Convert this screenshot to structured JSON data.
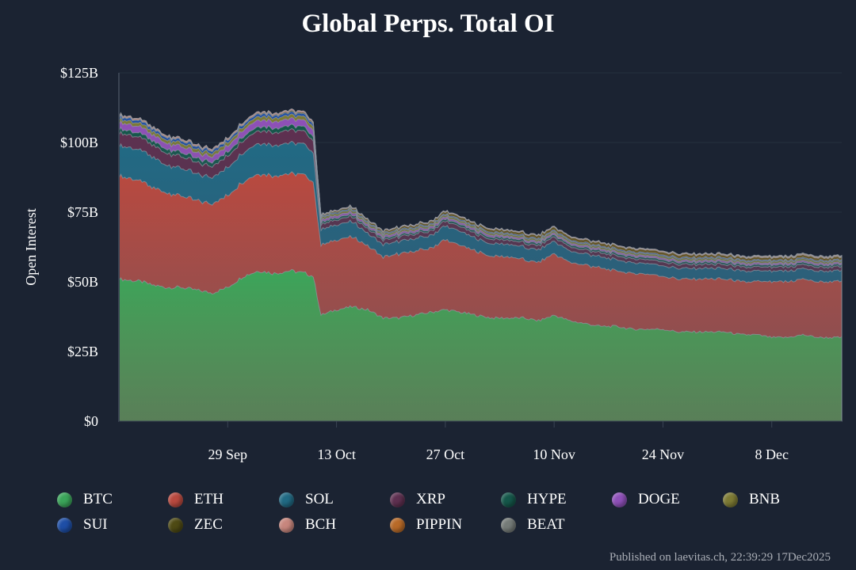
{
  "chart_data": {
    "type": "area",
    "title": "Global Perps. Total OI",
    "ylabel": "Open Interest",
    "xlabel": "",
    "ylim": [
      0,
      125
    ],
    "y_unit": "$B",
    "y_ticks": [
      {
        "value": 0,
        "label": "$0"
      },
      {
        "value": 25,
        "label": "$25B"
      },
      {
        "value": 50,
        "label": "$50B"
      },
      {
        "value": 75,
        "label": "$75B"
      },
      {
        "value": 100,
        "label": "$100B"
      },
      {
        "value": 125,
        "label": "$125B"
      }
    ],
    "x_range": [
      "2025-09-15",
      "2025-12-17"
    ],
    "x_ticks": [
      {
        "date": "2025-09-29",
        "label": "29 Sep"
      },
      {
        "date": "2025-10-13",
        "label": "13 Oct"
      },
      {
        "date": "2025-10-27",
        "label": "27 Oct"
      },
      {
        "date": "2025-11-10",
        "label": "10 Nov"
      },
      {
        "date": "2025-11-24",
        "label": "24 Nov"
      },
      {
        "date": "2025-12-08",
        "label": "8 Dec"
      }
    ],
    "stacking": "cumulative",
    "grid": true,
    "legend_position": "bottom",
    "dates": [
      "2025-09-15",
      "2025-09-18",
      "2025-09-19",
      "2025-09-21",
      "2025-09-23",
      "2025-09-25",
      "2025-09-27",
      "2025-09-29",
      "2025-10-01",
      "2025-10-03",
      "2025-10-05",
      "2025-10-07",
      "2025-10-09",
      "2025-10-10",
      "2025-10-11",
      "2025-10-13",
      "2025-10-15",
      "2025-10-17",
      "2025-10-19",
      "2025-10-21",
      "2025-10-23",
      "2025-10-25",
      "2025-10-27",
      "2025-10-29",
      "2025-10-31",
      "2025-11-02",
      "2025-11-04",
      "2025-11-06",
      "2025-11-08",
      "2025-11-10",
      "2025-11-12",
      "2025-11-14",
      "2025-11-16",
      "2025-11-18",
      "2025-11-20",
      "2025-11-22",
      "2025-11-24",
      "2025-11-26",
      "2025-11-28",
      "2025-11-30",
      "2025-12-02",
      "2025-12-04",
      "2025-12-06",
      "2025-12-08",
      "2025-12-10",
      "2025-12-12",
      "2025-12-14",
      "2025-12-17"
    ],
    "series": [
      {
        "name": "BTC",
        "color": "#3ba55a",
        "values": [
          51,
          50,
          49,
          48,
          48,
          47,
          46,
          48,
          52,
          54,
          53,
          54,
          53,
          52,
          38,
          40,
          41,
          40,
          37,
          37,
          38,
          39,
          40,
          39,
          38,
          37,
          37,
          37,
          36,
          38,
          36,
          35,
          34,
          34,
          33,
          33,
          33,
          32,
          32,
          32,
          32,
          31,
          31,
          30,
          30,
          31,
          30,
          30
        ]
      },
      {
        "name": "ETH",
        "color": "#b9493f",
        "values": [
          37,
          36,
          35,
          34,
          33,
          32,
          32,
          33,
          34,
          35,
          35,
          35,
          35,
          34,
          25,
          25,
          25,
          23,
          22,
          23,
          23,
          23,
          25,
          24,
          23,
          22,
          22,
          21,
          21,
          22,
          21,
          21,
          21,
          20,
          20,
          20,
          19,
          19,
          19,
          19,
          19,
          19,
          19,
          20,
          20,
          20,
          20,
          20
        ]
      },
      {
        "name": "SOL",
        "color": "#216a84",
        "values": [
          11,
          11,
          11,
          10,
          10,
          9.5,
          9.5,
          10,
          10.5,
          11,
          11,
          11,
          11,
          10.5,
          5.5,
          5.5,
          5.5,
          4.5,
          4.5,
          4.5,
          4.5,
          4.5,
          5,
          5,
          4.5,
          4.5,
          4.5,
          4.5,
          4.5,
          4.5,
          4,
          4,
          4,
          4,
          3.8,
          3.8,
          3.8,
          3.8,
          3.8,
          3.8,
          3.8,
          3.8,
          3.8,
          3.8,
          3.8,
          3.8,
          3.8,
          3.8
        ]
      },
      {
        "name": "XRP",
        "color": "#5e3050",
        "values": [
          4.5,
          4.5,
          4.4,
          4.3,
          4.2,
          4.1,
          4,
          4.1,
          4.4,
          4.6,
          4.6,
          4.6,
          4.5,
          4.4,
          1.8,
          1.8,
          1.8,
          1.6,
          1.6,
          1.6,
          1.6,
          1.6,
          1.7,
          1.7,
          1.6,
          1.6,
          1.5,
          1.5,
          1.5,
          1.5,
          1.5,
          1.4,
          1.4,
          1.4,
          1.4,
          1.4,
          1.4,
          1.4,
          1.4,
          1.4,
          1.4,
          1.4,
          1.4,
          1.4,
          1.4,
          1.4,
          1.4,
          1.4
        ]
      },
      {
        "name": "HYPE",
        "color": "#15574a",
        "values": [
          1.5,
          1.5,
          1.5,
          1.5,
          1.5,
          1.5,
          1.5,
          1.5,
          1.5,
          1.5,
          1.6,
          1.6,
          1.6,
          1.5,
          0.8,
          0.8,
          0.8,
          0.7,
          0.7,
          0.7,
          0.7,
          0.7,
          0.8,
          0.8,
          0.8,
          0.8,
          0.8,
          0.8,
          0.8,
          0.8,
          0.8,
          0.8,
          0.8,
          0.8,
          0.8,
          0.8,
          0.8,
          0.8,
          0.8,
          0.8,
          0.8,
          0.8,
          0.8,
          0.8,
          0.8,
          0.8,
          0.8,
          0.8
        ]
      },
      {
        "name": "DOGE",
        "color": "#8e50b8",
        "values": [
          2.3,
          2.3,
          2.2,
          2.1,
          2.1,
          2,
          2,
          2.1,
          2.3,
          2.4,
          2.4,
          2.4,
          2.3,
          2.2,
          0.8,
          0.8,
          0.8,
          0.7,
          0.7,
          0.7,
          0.7,
          0.7,
          0.7,
          0.7,
          0.7,
          0.7,
          0.6,
          0.6,
          0.6,
          0.6,
          0.6,
          0.6,
          0.6,
          0.6,
          0.6,
          0.6,
          0.6,
          0.6,
          0.6,
          0.6,
          0.6,
          0.6,
          0.6,
          0.6,
          0.6,
          0.6,
          0.6,
          0.6
        ]
      },
      {
        "name": "BNB",
        "color": "#7d7a34",
        "values": [
          1.2,
          1.2,
          1.2,
          1.2,
          1.2,
          1.2,
          1.2,
          1.2,
          1.2,
          1.3,
          1.3,
          1.3,
          1.3,
          1.3,
          0.8,
          0.8,
          0.8,
          0.7,
          0.7,
          0.7,
          0.7,
          0.7,
          0.7,
          0.7,
          0.7,
          0.7,
          0.7,
          0.7,
          0.7,
          0.7,
          0.7,
          0.7,
          0.7,
          0.7,
          0.7,
          0.7,
          0.7,
          0.7,
          0.7,
          0.7,
          0.7,
          0.7,
          0.7,
          0.7,
          0.7,
          0.7,
          0.7,
          0.7
        ]
      },
      {
        "name": "SUI",
        "color": "#1e4ea6",
        "values": [
          0.9,
          0.9,
          0.9,
          0.9,
          0.9,
          0.9,
          0.9,
          0.9,
          0.9,
          0.9,
          0.9,
          0.9,
          0.9,
          0.9,
          0.4,
          0.4,
          0.4,
          0.4,
          0.4,
          0.4,
          0.4,
          0.4,
          0.4,
          0.4,
          0.4,
          0.4,
          0.4,
          0.4,
          0.4,
          0.4,
          0.4,
          0.4,
          0.4,
          0.4,
          0.4,
          0.4,
          0.4,
          0.4,
          0.4,
          0.4,
          0.4,
          0.4,
          0.4,
          0.4,
          0.4,
          0.4,
          0.4,
          0.4
        ]
      },
      {
        "name": "ZEC",
        "color": "#4e4a14",
        "values": [
          0.2,
          0.2,
          0.2,
          0.2,
          0.2,
          0.2,
          0.2,
          0.2,
          0.2,
          0.3,
          0.3,
          0.4,
          0.4,
          0.4,
          0.4,
          0.5,
          0.5,
          0.6,
          0.6,
          0.7,
          0.7,
          0.7,
          0.8,
          0.8,
          0.8,
          0.9,
          0.9,
          0.9,
          1,
          1,
          1,
          1,
          1,
          1,
          1,
          1,
          1,
          1,
          1,
          0.9,
          0.9,
          0.9,
          0.9,
          0.9,
          0.9,
          0.9,
          0.9,
          0.9
        ]
      },
      {
        "name": "BCH",
        "color": "#c7867d",
        "values": [
          0.5,
          0.5,
          0.5,
          0.5,
          0.5,
          0.5,
          0.5,
          0.5,
          0.5,
          0.5,
          0.5,
          0.5,
          0.5,
          0.5,
          0.3,
          0.3,
          0.3,
          0.3,
          0.3,
          0.3,
          0.3,
          0.3,
          0.3,
          0.3,
          0.3,
          0.3,
          0.3,
          0.3,
          0.3,
          0.3,
          0.3,
          0.3,
          0.3,
          0.3,
          0.3,
          0.3,
          0.3,
          0.3,
          0.3,
          0.3,
          0.3,
          0.3,
          0.3,
          0.3,
          0.3,
          0.3,
          0.3,
          0.3
        ]
      },
      {
        "name": "PIPPIN",
        "color": "#b86a28",
        "values": [
          0,
          0,
          0,
          0,
          0,
          0,
          0,
          0,
          0,
          0,
          0,
          0,
          0,
          0,
          0,
          0,
          0,
          0,
          0,
          0,
          0,
          0,
          0,
          0,
          0,
          0,
          0,
          0,
          0,
          0,
          0,
          0,
          0,
          0,
          0.1,
          0.1,
          0.1,
          0.1,
          0.1,
          0.1,
          0.1,
          0.1,
          0.2,
          0.2,
          0.2,
          0.2,
          0.2,
          0.2
        ]
      },
      {
        "name": "BEAT",
        "color": "#757b78",
        "values": [
          0,
          0,
          0,
          0,
          0,
          0,
          0,
          0,
          0,
          0,
          0,
          0,
          0,
          0,
          0,
          0,
          0,
          0,
          0,
          0,
          0,
          0,
          0,
          0,
          0,
          0,
          0,
          0,
          0,
          0,
          0,
          0,
          0,
          0,
          0,
          0,
          0,
          0,
          0,
          0,
          0.1,
          0.1,
          0.1,
          0.1,
          0.1,
          0.1,
          0.1,
          0.1
        ]
      }
    ]
  },
  "footer": {
    "published": "Published on laevitas.ch, 22:39:29 17Dec2025"
  }
}
